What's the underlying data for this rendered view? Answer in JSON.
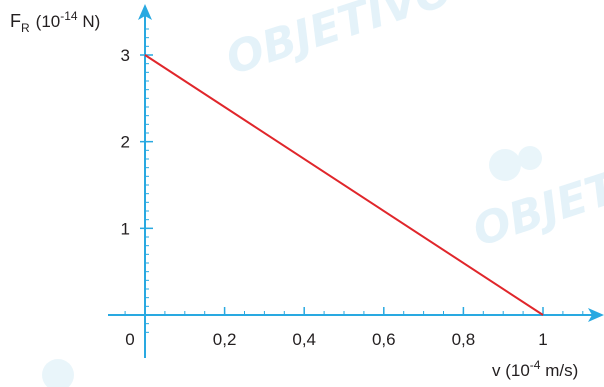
{
  "colors": {
    "axis": "#29a9e1",
    "line": "#e0262b",
    "text": "#231f20",
    "watermark": "#cfe9f5"
  },
  "watermark": {
    "text": "OBJETIVO"
  },
  "chart_data": {
    "type": "line",
    "title": "",
    "ylabel": {
      "symbol": "F",
      "subscript": "R",
      "unit_prefix": "(10",
      "exponent": "-14",
      "unit_suffix": " N)"
    },
    "xlabel": {
      "prefix": "v (10",
      "exponent": "-4",
      "suffix": " m/s)"
    },
    "x_ticks": [
      "0",
      "0,2",
      "0,4",
      "0,6",
      "0,8",
      "1"
    ],
    "y_ticks": [
      "1",
      "2",
      "3"
    ],
    "xlim": [
      0,
      1.15
    ],
    "ylim": [
      0,
      3.35
    ],
    "grid": false,
    "legend": "none",
    "series": [
      {
        "x": [
          0,
          1
        ],
        "y": [
          3,
          0
        ]
      }
    ]
  }
}
